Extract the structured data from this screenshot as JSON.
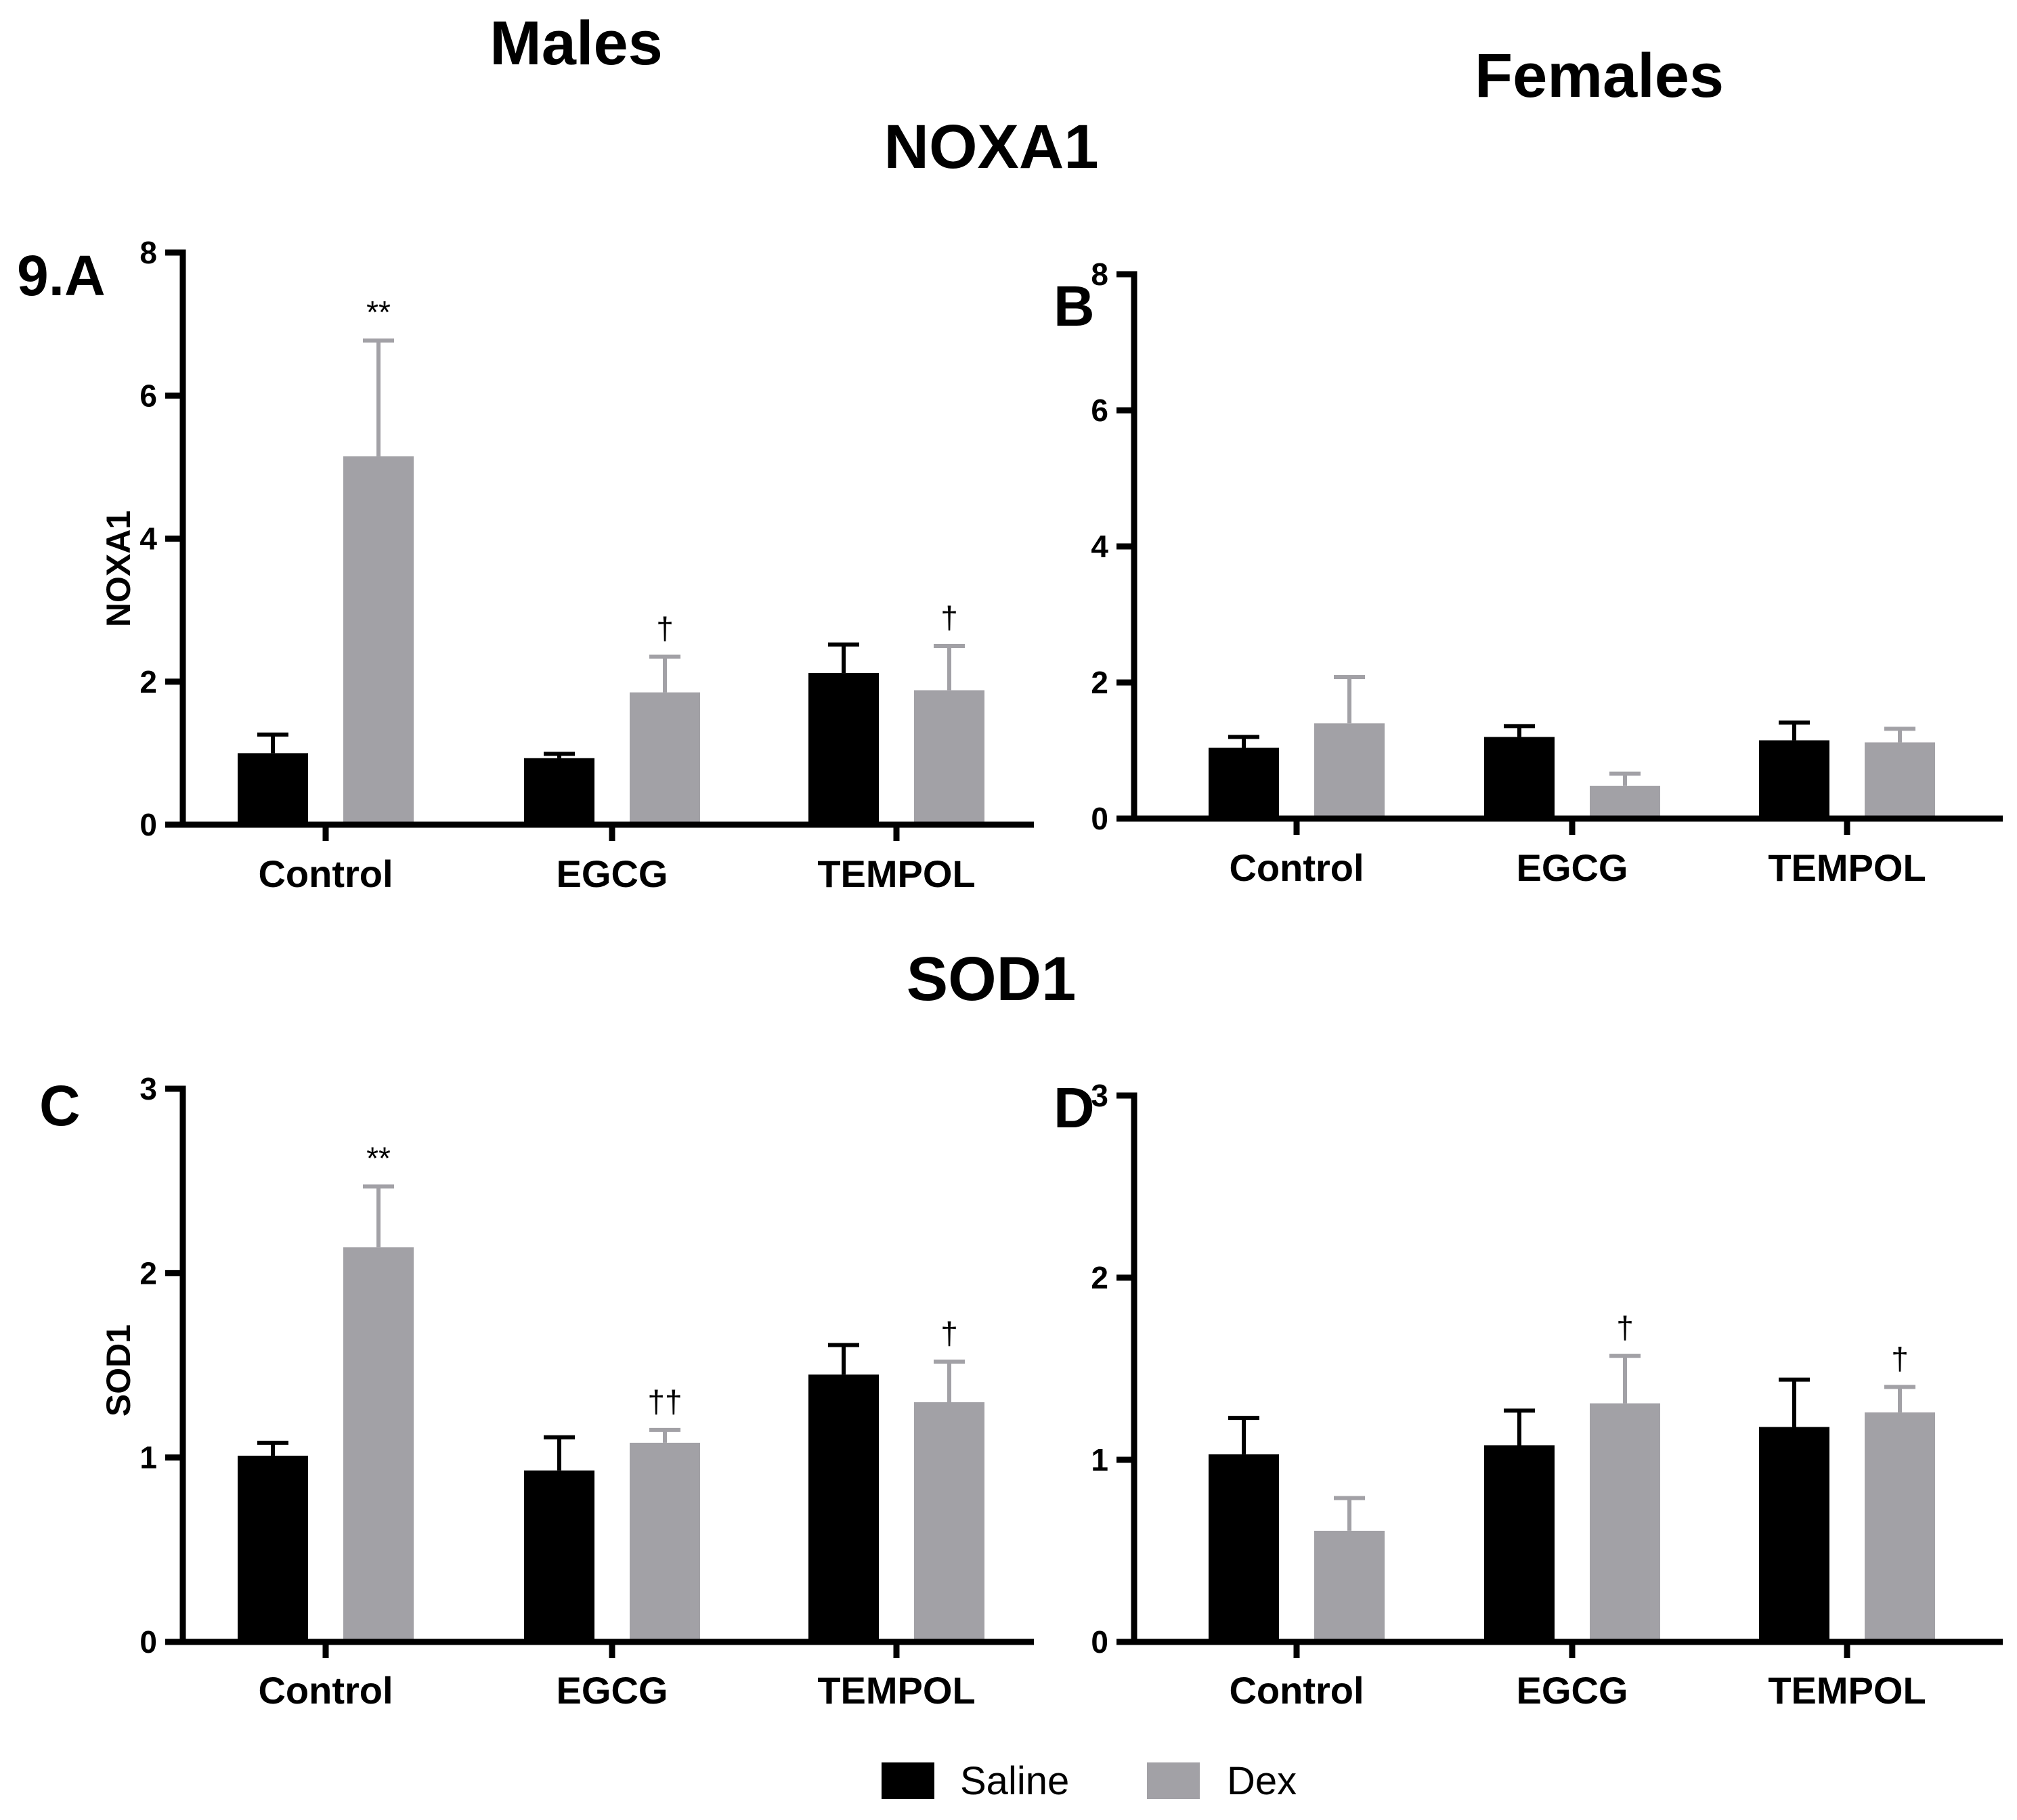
{
  "figure": {
    "col_headers": [
      "Males",
      "Females"
    ],
    "row_headers": [
      "NOXA1",
      "SOD1"
    ]
  },
  "legend": [
    {
      "label": "Saline",
      "color": "#000000"
    },
    {
      "label": "Dex",
      "color": "#a2a1a6"
    }
  ],
  "chart_data": [
    {
      "type": "bar",
      "panel": "9.A",
      "title": "",
      "xlabel": "",
      "ylabel": "NOXA1",
      "ylim": [
        0,
        8
      ],
      "yticks": [
        0,
        2,
        4,
        6,
        8
      ],
      "categories": [
        "Control",
        "EGCG",
        "TEMPOL"
      ],
      "series": [
        {
          "name": "Saline",
          "values": [
            1.0,
            0.93,
            2.12
          ],
          "errors": [
            0.26,
            0.06,
            0.4
          ]
        },
        {
          "name": "Dex",
          "values": [
            5.15,
            1.85,
            1.88
          ],
          "errors": [
            1.62,
            0.5,
            0.62
          ]
        }
      ],
      "annotations": [
        {
          "category": "Control",
          "series": "Dex",
          "text": "**"
        },
        {
          "category": "EGCG",
          "series": "Dex",
          "text": "†"
        },
        {
          "category": "TEMPOL",
          "series": "Dex",
          "text": "†"
        }
      ]
    },
    {
      "type": "bar",
      "panel": "B",
      "title": "",
      "xlabel": "",
      "ylabel": "",
      "ylim": [
        0,
        8
      ],
      "yticks": [
        0,
        2,
        4,
        6,
        8
      ],
      "categories": [
        "Control",
        "EGCG",
        "TEMPOL"
      ],
      "series": [
        {
          "name": "Saline",
          "values": [
            1.04,
            1.2,
            1.15
          ],
          "errors": [
            0.16,
            0.16,
            0.26
          ]
        },
        {
          "name": "Dex",
          "values": [
            1.4,
            0.48,
            1.12
          ],
          "errors": [
            0.68,
            0.18,
            0.2
          ]
        }
      ],
      "annotations": []
    },
    {
      "type": "bar",
      "panel": "C",
      "title": "",
      "xlabel": "",
      "ylabel": "SOD1",
      "ylim": [
        0,
        3
      ],
      "yticks": [
        0,
        1,
        2,
        3
      ],
      "categories": [
        "Control",
        "EGCG",
        "TEMPOL"
      ],
      "series": [
        {
          "name": "Saline",
          "values": [
            1.01,
            0.93,
            1.45
          ],
          "errors": [
            0.07,
            0.18,
            0.16
          ]
        },
        {
          "name": "Dex",
          "values": [
            2.14,
            1.08,
            1.3
          ],
          "errors": [
            0.33,
            0.07,
            0.22
          ]
        }
      ],
      "annotations": [
        {
          "category": "Control",
          "series": "Dex",
          "text": "**"
        },
        {
          "category": "EGCG",
          "series": "Dex",
          "text": "††"
        },
        {
          "category": "TEMPOL",
          "series": "Dex",
          "text": "†"
        }
      ]
    },
    {
      "type": "bar",
      "panel": "D",
      "title": "",
      "xlabel": "",
      "ylabel": "",
      "ylim": [
        0,
        3
      ],
      "yticks": [
        0,
        1,
        2,
        3
      ],
      "categories": [
        "Control",
        "EGCG",
        "TEMPOL"
      ],
      "series": [
        {
          "name": "Saline",
          "values": [
            1.03,
            1.08,
            1.18
          ],
          "errors": [
            0.2,
            0.19,
            0.26
          ]
        },
        {
          "name": "Dex",
          "values": [
            0.61,
            1.31,
            1.26
          ],
          "errors": [
            0.18,
            0.26,
            0.14
          ]
        }
      ],
      "annotations": [
        {
          "category": "EGCG",
          "series": "Dex",
          "text": "†"
        },
        {
          "category": "TEMPOL",
          "series": "Dex",
          "text": "†"
        }
      ]
    }
  ]
}
